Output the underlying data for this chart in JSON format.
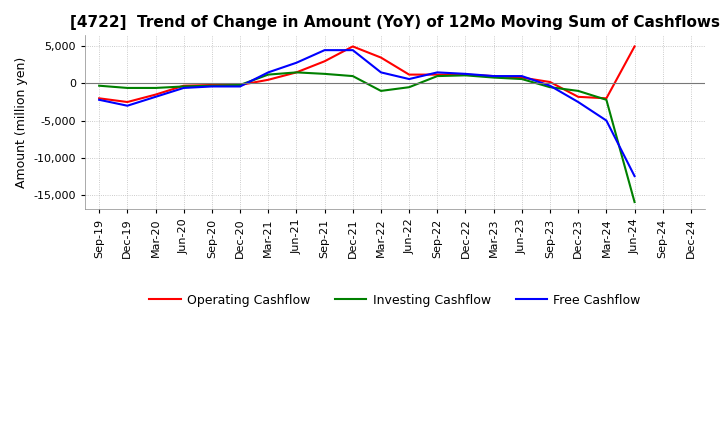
{
  "title": "[4722]  Trend of Change in Amount (YoY) of 12Mo Moving Sum of Cashflows",
  "ylabel": "Amount (million yen)",
  "x_labels": [
    "Sep-19",
    "Dec-19",
    "Mar-20",
    "Jun-20",
    "Sep-20",
    "Dec-20",
    "Mar-21",
    "Jun-21",
    "Sep-21",
    "Dec-21",
    "Mar-22",
    "Jun-22",
    "Sep-22",
    "Dec-22",
    "Mar-23",
    "Jun-23",
    "Sep-23",
    "Dec-23",
    "Mar-24",
    "Jun-24",
    "Sep-24",
    "Dec-24"
  ],
  "operating_cashflow": [
    -2000,
    -2500,
    -1500,
    -300,
    -200,
    -200,
    500,
    1500,
    3000,
    5000,
    3500,
    1200,
    1200,
    1200,
    1000,
    800,
    200,
    -1800,
    -2000,
    5000,
    null,
    null
  ],
  "investing_cashflow": [
    -300,
    -600,
    -600,
    -400,
    -300,
    -200,
    1200,
    1500,
    1300,
    1000,
    -1000,
    -500,
    1000,
    1100,
    800,
    600,
    -500,
    -1000,
    -2200,
    -16000,
    null,
    null
  ],
  "free_cashflow": [
    -2200,
    -3000,
    -1800,
    -600,
    -400,
    -400,
    1500,
    2800,
    4500,
    4500,
    1500,
    600,
    1500,
    1300,
    1000,
    1000,
    -300,
    -2500,
    -5000,
    -12500,
    null,
    null
  ],
  "ylim": [
    -17000,
    6500
  ],
  "yticks": [
    5000,
    0,
    -5000,
    -10000,
    -15000
  ],
  "operating_color": "#ff0000",
  "investing_color": "#008000",
  "free_color": "#0000ff",
  "line_width": 1.5,
  "background_color": "#ffffff",
  "grid_color": "#aaaaaa",
  "title_fontsize": 11,
  "tick_fontsize": 8,
  "ylabel_fontsize": 9
}
